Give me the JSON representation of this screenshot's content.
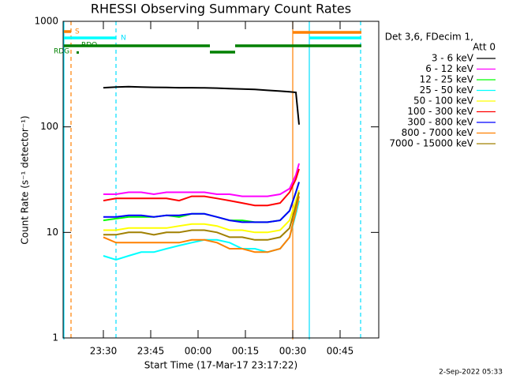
{
  "chart_data": {
    "type": "line",
    "title": "RHESSI Observing Summary Count Rates",
    "x_label": "Start Time (17-Mar-17 23:17:22)",
    "y_label": "Count Rate (s⁻¹ detector⁻¹)",
    "legend_header": [
      "Det 3,6, FDecim 1,",
      "Att 0"
    ],
    "footer": "2-Sep-2022 05:33",
    "flags": [
      "S",
      "N",
      "RDO",
      "RDG"
    ],
    "log_y": true,
    "legend": "right",
    "x": [
      30,
      34,
      38,
      42,
      46,
      50,
      54,
      58,
      62,
      66,
      70,
      74,
      78,
      82,
      86,
      89,
      91,
      92
    ],
    "xlim": [
      17.25,
      117.25
    ],
    "xticks": [
      {
        "value": 30,
        "label": "23:30"
      },
      {
        "value": 45,
        "label": "23:45"
      },
      {
        "value": 60,
        "label": "00:00"
      },
      {
        "value": 75,
        "label": "00:15"
      },
      {
        "value": 90,
        "label": "00:30"
      },
      {
        "value": 105,
        "label": "00:45"
      }
    ],
    "ylim": [
      1,
      1000
    ],
    "yticks": [
      1,
      10,
      100,
      1000
    ],
    "series": [
      {
        "name": "3 - 6 keV",
        "color": "#000000",
        "values": [
          235,
          238,
          240,
          238,
          237,
          236,
          235,
          235,
          234,
          233,
          230,
          228,
          226,
          222,
          218,
          215,
          212,
          105
        ]
      },
      {
        "name": "6 - 12 keV",
        "color": "#ff00ff",
        "values": [
          23,
          23,
          24,
          24,
          23,
          24,
          24,
          24,
          24,
          23,
          23,
          22,
          22,
          22,
          23,
          26,
          35,
          45
        ]
      },
      {
        "name": "12 - 25 keV",
        "color": "#00ff00",
        "values": [
          13,
          13.5,
          14,
          14,
          14,
          14.5,
          14,
          15,
          15,
          14,
          13,
          13,
          12.5,
          12.5,
          13,
          16,
          24,
          30
        ]
      },
      {
        "name": "25 - 50 keV",
        "color": "#00ffff",
        "values": [
          6,
          5.5,
          6,
          6.5,
          6.5,
          7,
          7.5,
          8,
          8.5,
          8.5,
          8,
          7,
          7,
          6.5,
          7,
          9,
          15,
          20
        ]
      },
      {
        "name": "50 - 100 keV",
        "color": "#ffff00",
        "values": [
          10.5,
          10.5,
          11,
          11,
          11,
          11,
          11.5,
          12,
          12,
          11.5,
          10.5,
          10.5,
          10,
          10,
          10.5,
          13,
          20,
          25
        ]
      },
      {
        "name": "100 - 300 keV",
        "color": "#ff0000",
        "values": [
          20,
          21,
          21,
          21,
          21,
          21,
          20,
          22,
          22,
          21,
          20,
          19,
          18,
          18,
          19,
          24,
          32,
          40
        ]
      },
      {
        "name": "300 - 800 keV",
        "color": "#0000ff",
        "values": [
          14,
          14,
          14.5,
          14.5,
          14,
          14.5,
          14.5,
          15,
          15,
          14,
          13,
          12.5,
          12.5,
          12.5,
          13,
          16,
          24,
          30
        ]
      },
      {
        "name": "800 - 7000 keV",
        "color": "#ff8000",
        "values": [
          9,
          8,
          8,
          8,
          8,
          8,
          8,
          8.5,
          8.5,
          8,
          7,
          7,
          6.5,
          6.5,
          7,
          9,
          16,
          22
        ]
      },
      {
        "name": "7000 - 15000 keV",
        "color": "#a08000",
        "values": [
          9.5,
          9.5,
          10,
          10,
          9.5,
          10,
          10,
          10.5,
          10.5,
          10,
          9,
          9,
          8.5,
          8.5,
          9,
          11,
          18,
          24
        ]
      }
    ]
  }
}
